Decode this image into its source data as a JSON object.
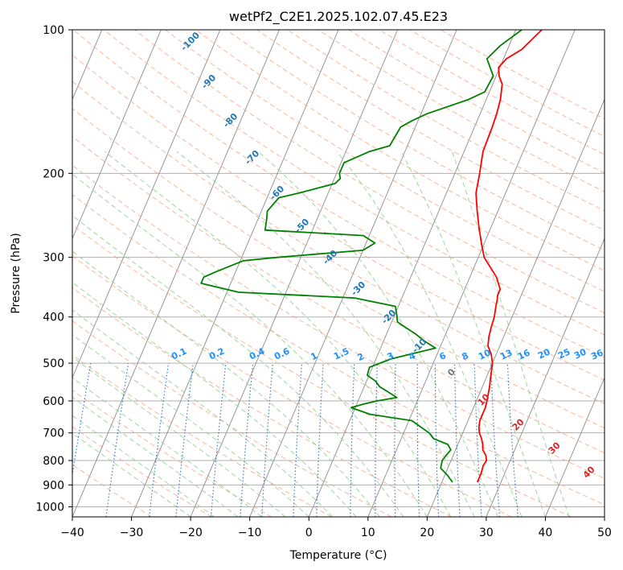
{
  "chart_data": {
    "type": "line",
    "title": "wetPf2_C2E1.2025.102.07.45.E23",
    "xlabel": "Temperature (°C)",
    "ylabel": "Pressure (hPa)",
    "xlim": [
      -40,
      50
    ],
    "ylim": [
      1050,
      100
    ],
    "y_scale": "log",
    "grid": true,
    "x_ticks": [
      -40,
      -30,
      -20,
      -10,
      0,
      10,
      20,
      30,
      40,
      50
    ],
    "y_ticks": [
      100,
      200,
      300,
      400,
      500,
      600,
      700,
      800,
      900,
      1000
    ],
    "series": [
      {
        "color": "#ff0000",
        "points": [
          [
            888,
            26.0
          ],
          [
            850,
            26.0
          ],
          [
            820,
            25.8
          ],
          [
            800,
            26.0
          ],
          [
            780,
            25.5
          ],
          [
            760,
            24.6
          ],
          [
            740,
            24.2
          ],
          [
            720,
            23.6
          ],
          [
            700,
            22.8
          ],
          [
            680,
            22.3
          ],
          [
            660,
            22.0
          ],
          [
            640,
            22.0
          ],
          [
            620,
            22.0
          ],
          [
            600,
            21.8
          ],
          [
            560,
            21.2
          ],
          [
            530,
            20.6
          ],
          [
            500,
            20.0
          ],
          [
            480,
            19.2
          ],
          [
            460,
            18.0
          ],
          [
            440,
            17.5
          ],
          [
            420,
            17.2
          ],
          [
            400,
            17.0
          ],
          [
            380,
            16.5
          ],
          [
            370,
            16.3
          ],
          [
            360,
            16.0
          ],
          [
            350,
            16.0
          ],
          [
            330,
            14.5
          ],
          [
            300,
            11.0
          ],
          [
            280,
            9.5
          ],
          [
            260,
            8.0
          ],
          [
            240,
            6.5
          ],
          [
            220,
            5.0
          ],
          [
            200,
            4.2
          ],
          [
            180,
            3.2
          ],
          [
            160,
            3.0
          ],
          [
            150,
            2.8
          ],
          [
            140,
            2.4
          ],
          [
            130,
            1.6
          ],
          [
            125,
            0.5
          ],
          [
            120,
            -0.2
          ],
          [
            115,
            0.5
          ],
          [
            110,
            2.4
          ],
          [
            100,
            4.4
          ]
        ]
      },
      {
        "color": "#008000",
        "points": [
          [
            888,
            21.8
          ],
          [
            860,
            20.5
          ],
          [
            830,
            18.8
          ],
          [
            800,
            18.5
          ],
          [
            780,
            18.8
          ],
          [
            760,
            19.2
          ],
          [
            740,
            18.3
          ],
          [
            720,
            15.5
          ],
          [
            700,
            14.3
          ],
          [
            660,
            10.5
          ],
          [
            640,
            3.0
          ],
          [
            620,
            -0.7
          ],
          [
            610,
            1.0
          ],
          [
            600,
            3.2
          ],
          [
            590,
            6.3
          ],
          [
            575,
            4.5
          ],
          [
            560,
            2.6
          ],
          [
            545,
            1.5
          ],
          [
            530,
            -0.3
          ],
          [
            510,
            -0.5
          ],
          [
            490,
            2.5
          ],
          [
            475,
            6.5
          ],
          [
            465,
            9.3
          ],
          [
            450,
            7.0
          ],
          [
            435,
            5.0
          ],
          [
            410,
            1.0
          ],
          [
            395,
            0.3
          ],
          [
            380,
            -0.5
          ],
          [
            365,
            -8.0
          ],
          [
            355,
            -28.0
          ],
          [
            340,
            -35.0
          ],
          [
            330,
            -35.0
          ],
          [
            320,
            -33.0
          ],
          [
            305,
            -29.5
          ],
          [
            300,
            -24.0
          ],
          [
            290,
            -10.0
          ],
          [
            280,
            -8.5
          ],
          [
            270,
            -11.0
          ],
          [
            263,
            -28.0
          ],
          [
            250,
            -28.5
          ],
          [
            240,
            -29.0
          ],
          [
            225,
            -28.0
          ],
          [
            220,
            -25.0
          ],
          [
            210,
            -19.5
          ],
          [
            205,
            -19.0
          ],
          [
            200,
            -19.5
          ],
          [
            190,
            -19.5
          ],
          [
            180,
            -16.0
          ],
          [
            175,
            -13.0
          ],
          [
            160,
            -12.5
          ],
          [
            155,
            -11.0
          ],
          [
            150,
            -9.0
          ],
          [
            140,
            -3.0
          ],
          [
            135,
            -0.8
          ],
          [
            125,
            -0.5
          ],
          [
            115,
            -2.8
          ],
          [
            108,
            -1.5
          ],
          [
            100,
            1.0
          ]
        ]
      }
    ],
    "dry_adiabat_labels": [
      "-100",
      "-90",
      "-80",
      "-70",
      "-60",
      "-50",
      "-40",
      "-30",
      "-20",
      "-10",
      "0",
      "10",
      "20",
      "30",
      "40"
    ],
    "mixing_ratio_labels": [
      "0.1",
      "0.2",
      "0.4",
      "0.6",
      "1",
      "1.5",
      "2",
      "3",
      "4",
      "6",
      "8",
      "10",
      "13",
      "16",
      "20",
      "25",
      "30",
      "36"
    ],
    "colors": {
      "temperature": "#ff0000",
      "dewpoint": "#008000",
      "dry_adiabat": "#f4a582",
      "moist_adiabat": "#8fce8f",
      "mixing_ratio": "#1f77d4",
      "isotherm": "#8c8c8c"
    }
  }
}
